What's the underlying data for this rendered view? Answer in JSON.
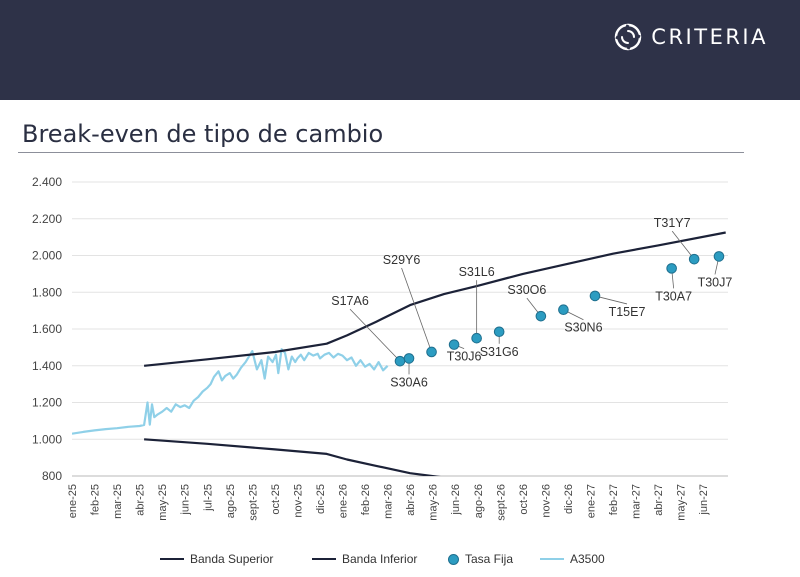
{
  "header": {
    "brand": "CRITERIA",
    "logo_icon": "criteria-swirl-logo-icon"
  },
  "title": "Break-even de tipo de cambio",
  "colors": {
    "header_bg": "#2e3248",
    "band": "#1c2238",
    "tasa_fija": "#2c9cc1",
    "a3500": "#8fd0e8"
  },
  "chart_data": {
    "type": "line",
    "title": "Break-even de tipo de cambio",
    "xlabel": "",
    "ylabel": "",
    "ylim": [
      800,
      2400
    ],
    "yticks": [
      800,
      1000,
      1200,
      1400,
      1600,
      1800,
      2000,
      2200,
      2400
    ],
    "ytick_labels": [
      "800",
      "1.000",
      "1.200",
      "1.400",
      "1.600",
      "1.800",
      "2.000",
      "2.200",
      "2.400"
    ],
    "xlim": [
      0,
      29.1
    ],
    "x_tick_labels": [
      "ene-25",
      "feb-25",
      "mar-25",
      "abr-25",
      "may-25",
      "jun-25",
      "jul-25",
      "ago-25",
      "sept-25",
      "oct-25",
      "nov-25",
      "dic-25",
      "ene-26",
      "feb-26",
      "mar-26",
      "abr-26",
      "may-26",
      "jun-26",
      "ago-26",
      "sept-26",
      "oct-26",
      "nov-26",
      "dic-26",
      "ene-27",
      "feb-27",
      "mar-27",
      "abr-27",
      "may-27",
      "jun-27"
    ],
    "grid": true,
    "legend_position": "bottom",
    "series": [
      {
        "name": "Banda Superior",
        "kind": "line",
        "x": [
          3.2,
          6,
          9,
          11.3,
          12.2,
          13.5,
          15,
          16.5,
          18,
          20,
          22,
          24,
          26,
          29
        ],
        "y": [
          1400,
          1435,
          1475,
          1520,
          1565,
          1640,
          1730,
          1790,
          1835,
          1900,
          1955,
          2010,
          2055,
          2125
        ]
      },
      {
        "name": "Banda Inferior",
        "kind": "line",
        "x": [
          3.2,
          6,
          9,
          11.3,
          12.2,
          13.5,
          15,
          16.6
        ],
        "y": [
          1000,
          975,
          945,
          920,
          890,
          855,
          815,
          790
        ]
      },
      {
        "name": "Tasa Fija",
        "kind": "scatter",
        "points": [
          {
            "label": "S17A6",
            "x": 14.55,
            "y": 1425
          },
          {
            "label": "S30A6",
            "x": 14.95,
            "y": 1440
          },
          {
            "label": "S29Y6",
            "x": 15.95,
            "y": 1475
          },
          {
            "label": "T30J6",
            "x": 16.95,
            "y": 1515
          },
          {
            "label": "S31L6",
            "x": 17.95,
            "y": 1550
          },
          {
            "label": "S31G6",
            "x": 18.95,
            "y": 1585
          },
          {
            "label": "S30O6",
            "x": 20.8,
            "y": 1670
          },
          {
            "label": "S30N6",
            "x": 21.8,
            "y": 1705
          },
          {
            "label": "T15E7",
            "x": 23.2,
            "y": 1780
          },
          {
            "label": "T30A7",
            "x": 26.6,
            "y": 1930
          },
          {
            "label": "T31Y7",
            "x": 27.6,
            "y": 1980
          },
          {
            "label": "T30J7",
            "x": 28.7,
            "y": 1995
          }
        ]
      },
      {
        "name": "A3500",
        "kind": "line",
        "x": [
          0,
          0.5,
          1,
          1.5,
          2,
          2.5,
          3,
          3.2,
          3.3,
          3.35,
          3.45,
          3.55,
          3.65,
          3.8,
          4,
          4.2,
          4.4,
          4.6,
          4.8,
          5,
          5.2,
          5.4,
          5.6,
          5.8,
          6,
          6.15,
          6.3,
          6.5,
          6.65,
          6.8,
          7,
          7.15,
          7.3,
          7.5,
          7.7,
          7.9,
          8,
          8.2,
          8.4,
          8.55,
          8.7,
          8.9,
          9.05,
          9.15,
          9.3,
          9.45,
          9.6,
          9.75,
          9.9,
          10,
          10.15,
          10.3,
          10.5,
          10.7,
          10.9,
          11,
          11.2,
          11.4,
          11.6,
          11.8,
          12,
          12.2,
          12.4,
          12.6,
          12.8,
          13,
          13.2,
          13.4,
          13.6,
          13.8,
          14
        ],
        "y": [
          1030,
          1040,
          1048,
          1055,
          1060,
          1068,
          1072,
          1078,
          1160,
          1200,
          1080,
          1190,
          1120,
          1135,
          1150,
          1170,
          1150,
          1190,
          1175,
          1185,
          1170,
          1210,
          1230,
          1260,
          1280,
          1300,
          1340,
          1370,
          1320,
          1345,
          1360,
          1330,
          1350,
          1390,
          1420,
          1460,
          1480,
          1380,
          1430,
          1330,
          1450,
          1420,
          1460,
          1360,
          1490,
          1470,
          1380,
          1450,
          1420,
          1440,
          1460,
          1430,
          1470,
          1455,
          1465,
          1440,
          1460,
          1470,
          1445,
          1465,
          1455,
          1430,
          1445,
          1400,
          1430,
          1395,
          1410,
          1380,
          1420,
          1375,
          1400
        ]
      }
    ]
  }
}
